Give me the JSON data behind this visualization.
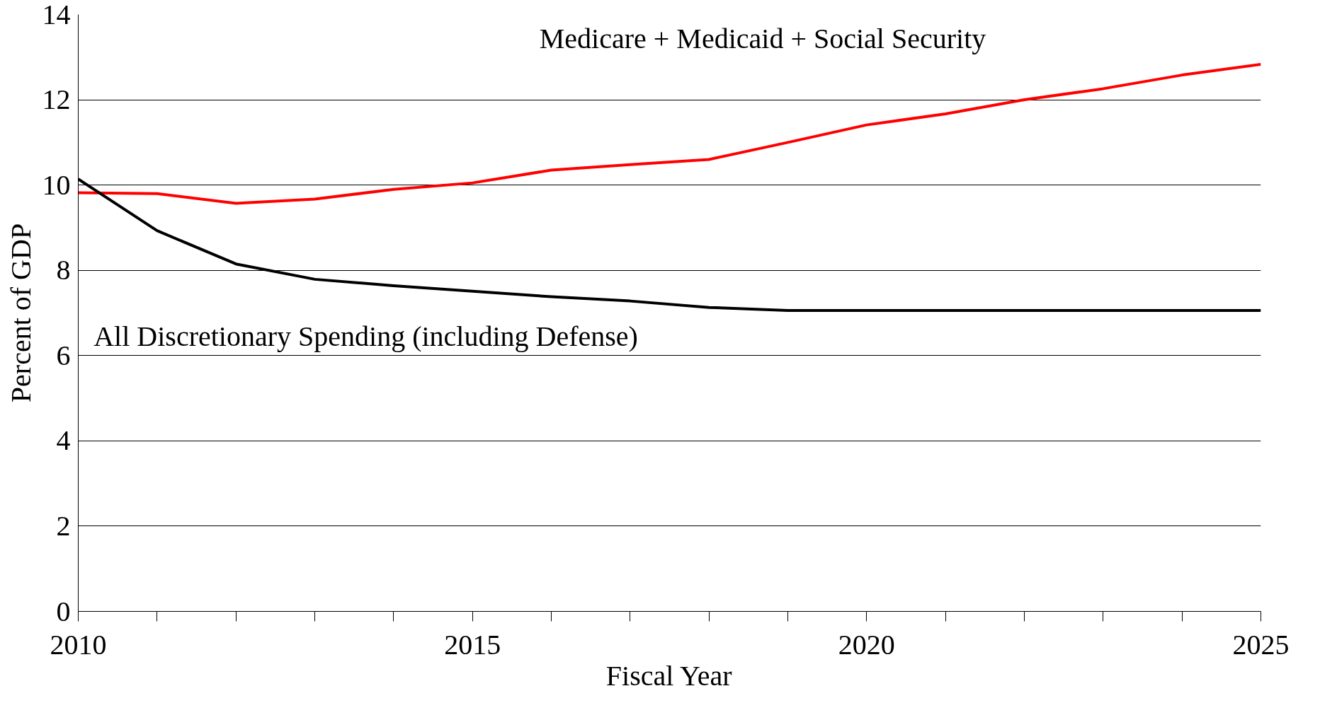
{
  "chart_data": {
    "type": "line",
    "xlabel": "Fiscal Year",
    "ylabel": "Percent of GDP",
    "x": [
      2010,
      2011,
      2012,
      2013,
      2014,
      2015,
      2016,
      2017,
      2018,
      2019,
      2020,
      2021,
      2022,
      2023,
      2024,
      2025
    ],
    "series": [
      {
        "name": "Medicare + Medicaid + Social Security",
        "color": "#ff0000",
        "values": [
          9.82,
          9.8,
          9.57,
          9.67,
          9.9,
          10.05,
          10.35,
          10.48,
          10.6,
          11.0,
          11.41,
          11.67,
          12.0,
          12.26,
          12.58,
          12.83
        ]
      },
      {
        "name": "All Discretionary Spending (including Defense)",
        "color": "#000000",
        "values": [
          10.14,
          8.93,
          8.15,
          7.79,
          7.64,
          7.51,
          7.38,
          7.28,
          7.13,
          7.06,
          7.06,
          7.06,
          7.06,
          7.06,
          7.06,
          7.06
        ]
      }
    ],
    "xlim": [
      2010,
      2025
    ],
    "xticks": [
      2010,
      {
        "value": 2011,
        "label": null
      },
      {
        "value": 2012,
        "label": null
      },
      {
        "value": 2013,
        "label": null
      },
      {
        "value": 2014,
        "label": null
      },
      2015,
      {
        "value": 2016,
        "label": null
      },
      {
        "value": 2017,
        "label": null
      },
      {
        "value": 2018,
        "label": null
      },
      {
        "value": 2019,
        "label": null
      },
      2020,
      {
        "value": 2021,
        "label": null
      },
      {
        "value": 2022,
        "label": null
      },
      {
        "value": 2023,
        "label": null
      },
      {
        "value": 2024,
        "label": null
      },
      2025
    ],
    "ylim": [
      0,
      14
    ],
    "yticks": [
      0,
      2,
      4,
      6,
      8,
      10,
      12,
      14
    ],
    "grid": "y",
    "marker": "none",
    "line_style": "solid"
  }
}
